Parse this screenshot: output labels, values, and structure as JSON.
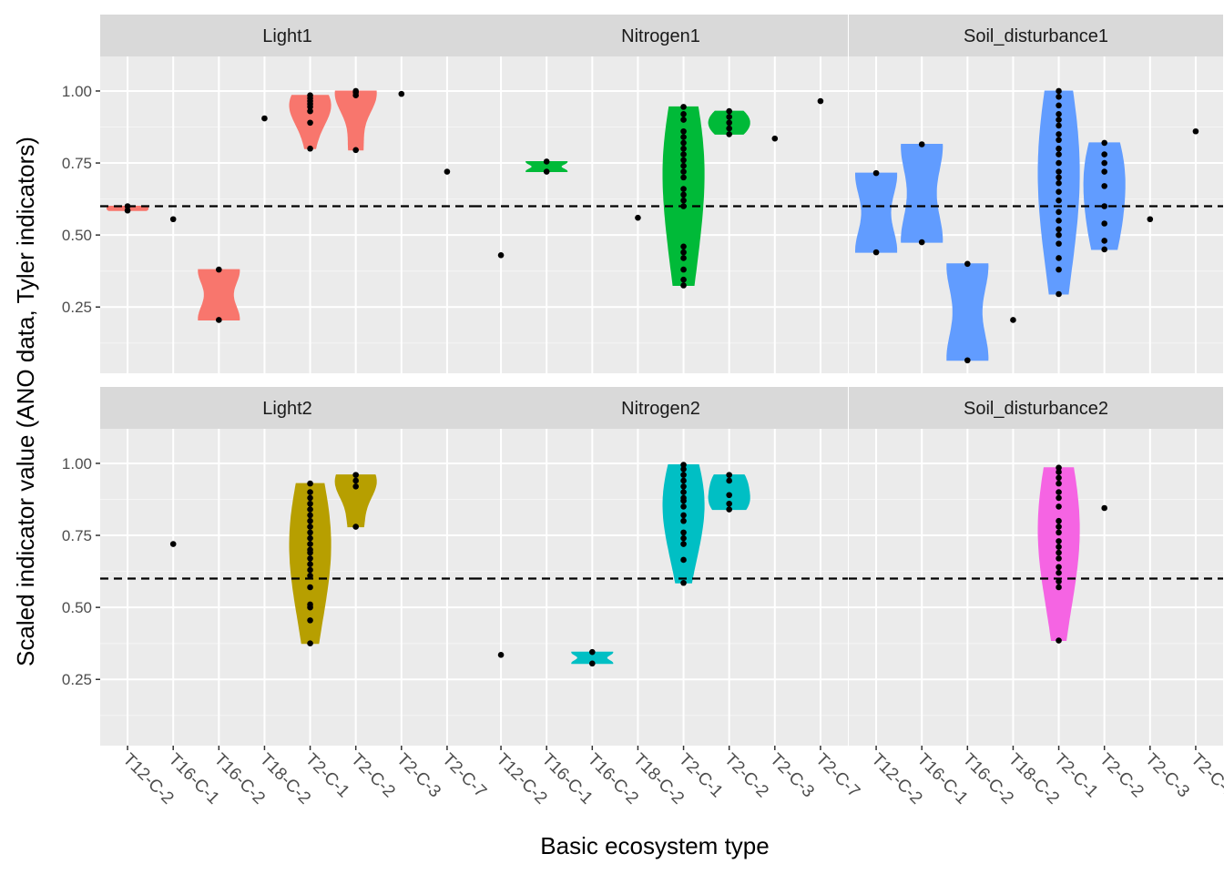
{
  "chart_data": {
    "type": "violin",
    "xlabel": "Basic ecosystem type",
    "ylabel": "Scaled indicator value (ANO data, Tyler indicators)",
    "categories": [
      "T12-C-2",
      "T16-C-1",
      "T16-C-2",
      "T18-C-2",
      "T2-C-1",
      "T2-C-2",
      "T2-C-3",
      "T2-C-7"
    ],
    "ylim": [
      0.02,
      1.12
    ],
    "yticks": [
      0.25,
      0.5,
      0.75,
      1.0
    ],
    "ytick_labels": [
      "0.25",
      "0.50",
      "0.75",
      "1.00"
    ],
    "reference_line": 0.6,
    "grid": true,
    "facets": [
      {
        "label": "Light1",
        "color": "#F8766D",
        "groups": [
          {
            "category": "T12-C-2",
            "points": [
              0.585,
              0.6
            ],
            "violin": true
          },
          {
            "category": "T16-C-1",
            "points": [
              0.555
            ],
            "violin": false
          },
          {
            "category": "T16-C-2",
            "points": [
              0.205,
              0.38
            ],
            "violin": true
          },
          {
            "category": "T18-C-2",
            "points": [
              0.905
            ],
            "violin": false
          },
          {
            "category": "T2-C-1",
            "points": [
              0.8,
              0.89,
              0.93,
              0.945,
              0.955,
              0.965,
              0.975,
              0.985
            ],
            "violin": true
          },
          {
            "category": "T2-C-2",
            "points": [
              0.795,
              0.985,
              0.995,
              1.0
            ],
            "violin": true
          },
          {
            "category": "T2-C-3",
            "points": [
              0.99
            ],
            "violin": false
          },
          {
            "category": "T2-C-7",
            "points": [
              0.72
            ],
            "violin": false
          }
        ]
      },
      {
        "label": "Nitrogen1",
        "color": "#00BA38",
        "groups": [
          {
            "category": "T12-C-2",
            "points": [
              0.43
            ],
            "violin": false
          },
          {
            "category": "T16-C-1",
            "points": [
              0.72,
              0.755
            ],
            "violin": true
          },
          {
            "category": "T18-C-2",
            "points": [
              0.56
            ],
            "violin": false
          },
          {
            "category": "T2-C-1",
            "points": [
              0.325,
              0.345,
              0.38,
              0.42,
              0.44,
              0.46,
              0.6,
              0.62,
              0.64,
              0.66,
              0.7,
              0.72,
              0.74,
              0.76,
              0.78,
              0.8,
              0.82,
              0.84,
              0.86,
              0.9,
              0.92,
              0.945
            ],
            "violin": true
          },
          {
            "category": "T2-C-2",
            "points": [
              0.85,
              0.87,
              0.89,
              0.91,
              0.93
            ],
            "violin": true
          },
          {
            "category": "T2-C-3",
            "points": [
              0.835
            ],
            "violin": false
          },
          {
            "category": "T2-C-7",
            "points": [
              0.965
            ],
            "violin": false
          }
        ]
      },
      {
        "label": "Soil_disturbance1",
        "color": "#619CFF",
        "groups": [
          {
            "category": "T12-C-2",
            "points": [
              0.44,
              0.715
            ],
            "violin": true
          },
          {
            "category": "T16-C-1",
            "points": [
              0.475,
              0.815
            ],
            "violin": true
          },
          {
            "category": "T16-C-2",
            "points": [
              0.065,
              0.4
            ],
            "violin": true
          },
          {
            "category": "T18-C-2",
            "points": [
              0.205
            ],
            "violin": false
          },
          {
            "category": "T2-C-1",
            "points": [
              0.295,
              0.38,
              0.42,
              0.47,
              0.5,
              0.52,
              0.55,
              0.58,
              0.62,
              0.65,
              0.68,
              0.7,
              0.72,
              0.75,
              0.78,
              0.8,
              0.83,
              0.85,
              0.88,
              0.9,
              0.92,
              0.95,
              0.98,
              1.0
            ],
            "violin": true
          },
          {
            "category": "T2-C-2",
            "points": [
              0.45,
              0.48,
              0.54,
              0.6,
              0.67,
              0.72,
              0.75,
              0.78,
              0.82
            ],
            "violin": true
          },
          {
            "category": "T2-C-3",
            "points": [
              0.555
            ],
            "violin": false
          },
          {
            "category": "T2-C-7",
            "points": [
              0.86
            ],
            "violin": false
          }
        ]
      },
      {
        "label": "Light2",
        "color": "#B79F00",
        "groups": [
          {
            "category": "T16-C-1",
            "points": [
              0.72
            ],
            "violin": false
          },
          {
            "category": "T2-C-1",
            "points": [
              0.375,
              0.455,
              0.5,
              0.51,
              0.57,
              0.61,
              0.63,
              0.65,
              0.67,
              0.69,
              0.7,
              0.72,
              0.74,
              0.76,
              0.78,
              0.8,
              0.82,
              0.84,
              0.86,
              0.88,
              0.9,
              0.93
            ],
            "violin": true
          },
          {
            "category": "T2-C-2",
            "points": [
              0.78,
              0.92,
              0.94,
              0.96
            ],
            "violin": true
          }
        ]
      },
      {
        "label": "Nitrogen2",
        "color": "#00BFC4",
        "groups": [
          {
            "category": "T12-C-2",
            "points": [
              0.335
            ],
            "violin": false
          },
          {
            "category": "T16-C-2",
            "points": [
              0.305,
              0.345
            ],
            "violin": true
          },
          {
            "category": "T2-C-1",
            "points": [
              0.585,
              0.665,
              0.72,
              0.74,
              0.76,
              0.8,
              0.82,
              0.85,
              0.87,
              0.88,
              0.9,
              0.92,
              0.94,
              0.96,
              0.98,
              0.995
            ],
            "violin": true
          },
          {
            "category": "T2-C-2",
            "points": [
              0.84,
              0.86,
              0.89,
              0.94,
              0.96
            ],
            "violin": true
          }
        ]
      },
      {
        "label": "Soil_disturbance2",
        "color": "#F564E3",
        "groups": [
          {
            "category": "T2-C-1",
            "points": [
              0.385,
              0.57,
              0.59,
              0.62,
              0.64,
              0.67,
              0.69,
              0.71,
              0.73,
              0.76,
              0.78,
              0.8,
              0.85,
              0.88,
              0.9,
              0.93,
              0.95,
              0.97,
              0.985
            ],
            "violin": true
          },
          {
            "category": "T2-C-2",
            "points": [
              0.845
            ],
            "violin": false
          }
        ]
      }
    ]
  }
}
